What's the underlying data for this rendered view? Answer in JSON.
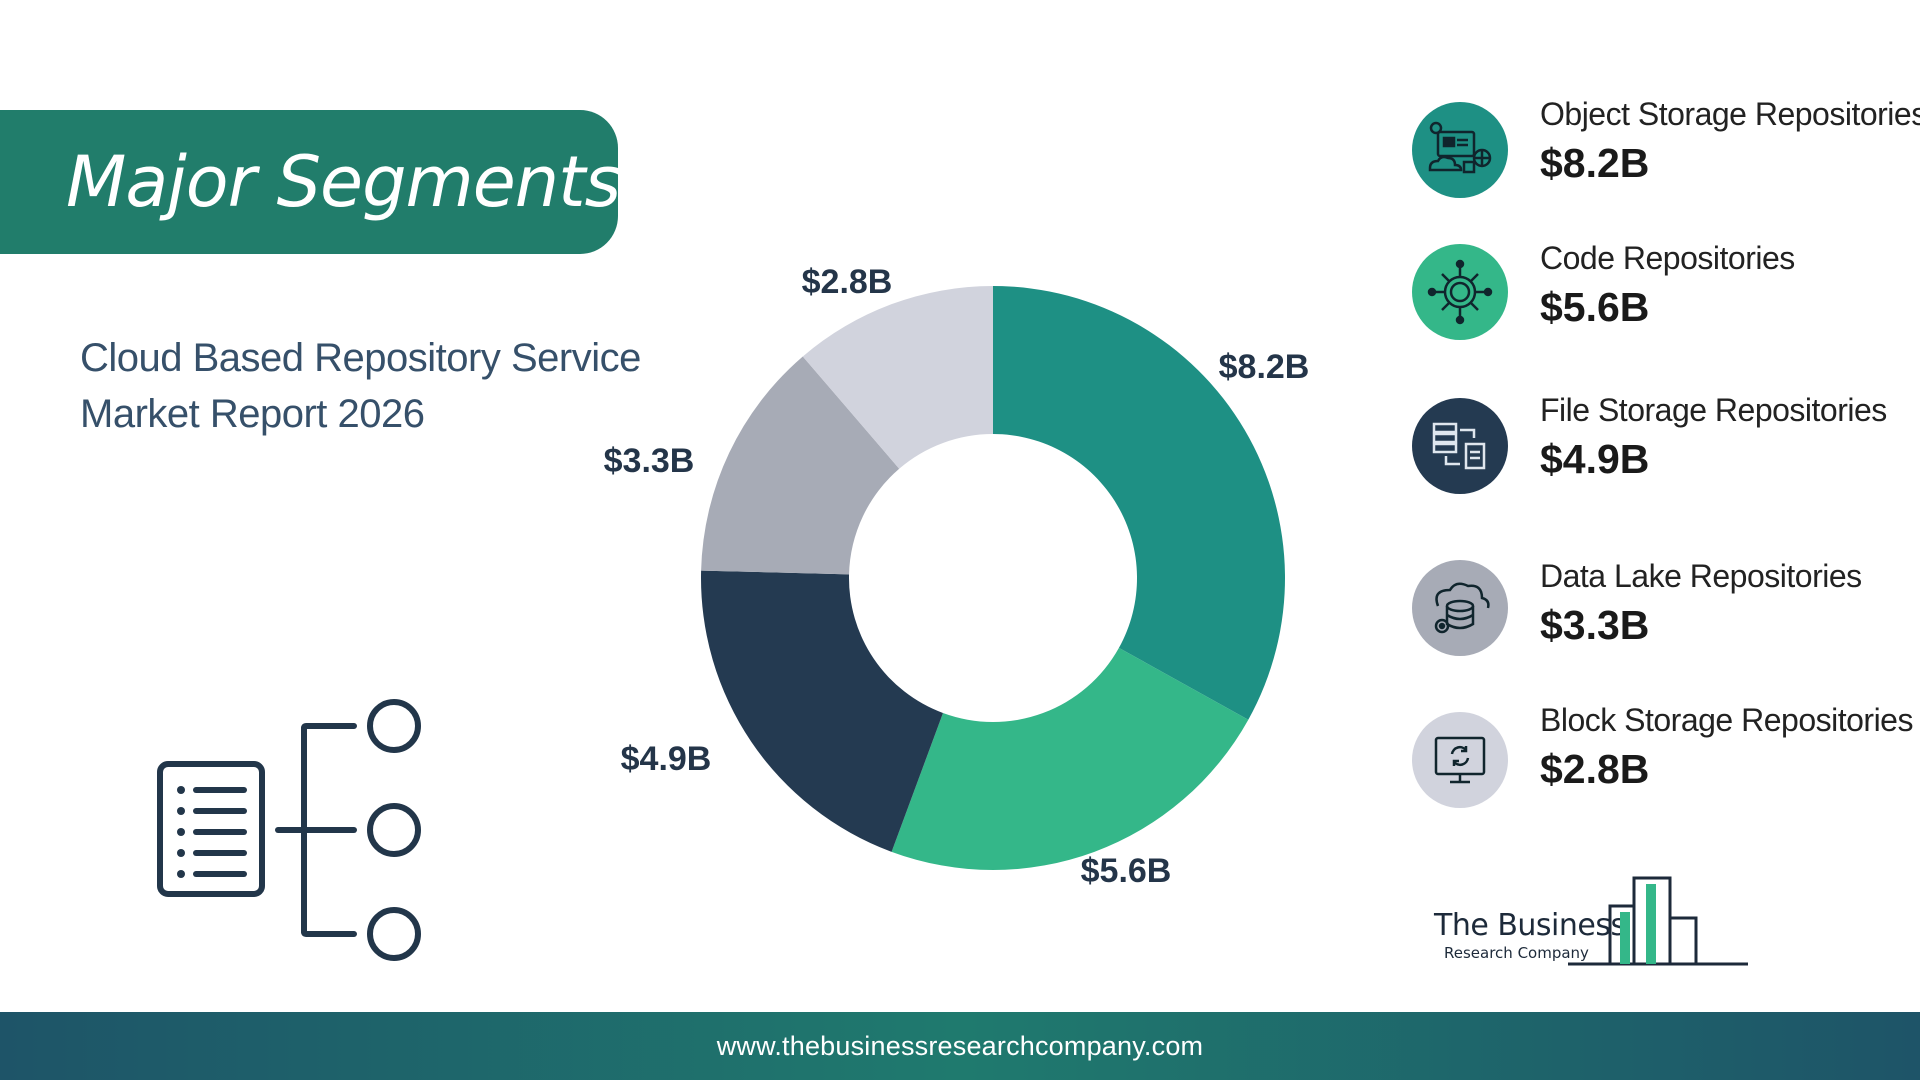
{
  "header": {
    "title": "Major Segments"
  },
  "report": {
    "title_line1": "Cloud Based Repository Service",
    "title_line2": "Market Report 2026"
  },
  "chart_data": {
    "type": "pie",
    "title": "",
    "unit": "$B",
    "donut": true,
    "categories": [
      "Object Storage Repositories",
      "Code Repositories",
      "File Storage Repositories",
      "Data Lake Repositories",
      "Block Storage Repositories"
    ],
    "values": [
      8.2,
      5.6,
      4.9,
      3.3,
      2.8
    ],
    "data_labels": [
      "$8.2B",
      "$5.6B",
      "$4.9B",
      "$3.3B",
      "$2.8B"
    ],
    "colors": [
      "#1e9084",
      "#34b789",
      "#243a51",
      "#a7abb6",
      "#d1d3dd"
    ],
    "legend": "right"
  },
  "legend": {
    "items": [
      {
        "name": "Object Storage Repositories",
        "value": "$8.2B",
        "icon": "object-storage-icon"
      },
      {
        "name": "Code Repositories",
        "value": "$5.6B",
        "icon": "code-gear-icon"
      },
      {
        "name": "File Storage Repositories",
        "value": "$4.9B",
        "icon": "file-transfer-icon"
      },
      {
        "name": "Data Lake Repositories",
        "value": "$3.3B",
        "icon": "cloud-database-icon"
      },
      {
        "name": "Block Storage Repositories",
        "value": "$2.8B",
        "icon": "monitor-sync-icon"
      }
    ]
  },
  "logo": {
    "line1": "The Business",
    "line2": "Research Company"
  },
  "footer": {
    "url": "www.thebusinessresearchcompany.com"
  }
}
